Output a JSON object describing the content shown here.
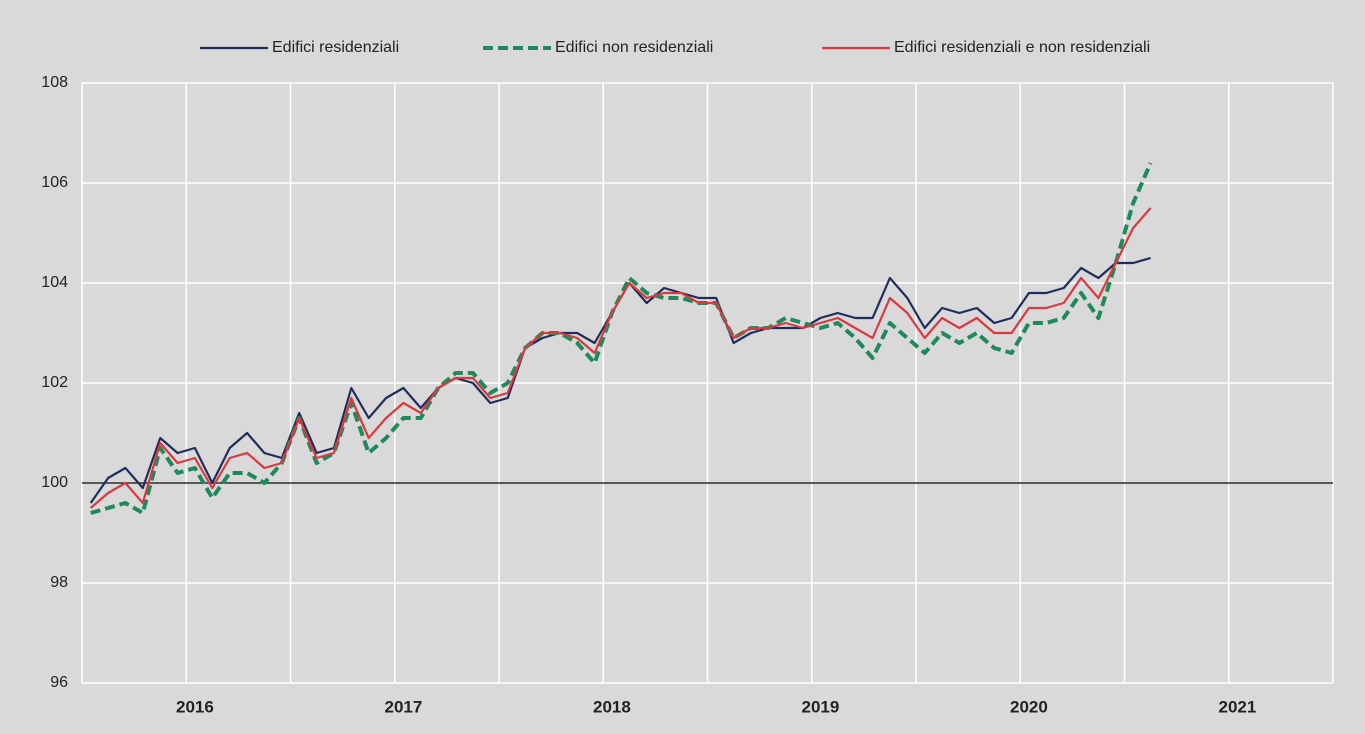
{
  "chart_data": {
    "type": "line",
    "categories": [
      null,
      null,
      null,
      null,
      null,
      null,
      "2016",
      null,
      null,
      null,
      null,
      null,
      null,
      null,
      null,
      null,
      null,
      null,
      "2017",
      null,
      null,
      null,
      null,
      null,
      null,
      null,
      null,
      null,
      null,
      null,
      "2018",
      null,
      null,
      null,
      null,
      null,
      null,
      null,
      null,
      null,
      null,
      null,
      "2019",
      null,
      null,
      null,
      null,
      null,
      null,
      null,
      null,
      null,
      null,
      null,
      "2020",
      null,
      null,
      null,
      null,
      null,
      null,
      null,
      null,
      null,
      null,
      null,
      "2021",
      null,
      null,
      null,
      null,
      null
    ],
    "series": [
      {
        "name": "Edifici residenziali",
        "color": "#1f2d5c",
        "dash": false,
        "values": [
          99.6,
          100.1,
          100.3,
          99.9,
          100.9,
          100.6,
          100.7,
          100.0,
          100.7,
          101.0,
          100.6,
          100.5,
          101.4,
          100.6,
          100.7,
          101.9,
          101.3,
          101.7,
          101.9,
          101.5,
          101.9,
          102.1,
          102.0,
          101.6,
          101.7,
          102.7,
          102.9,
          103.0,
          103.0,
          102.8,
          103.4,
          104.0,
          103.6,
          103.9,
          103.8,
          103.7,
          103.7,
          102.8,
          103.0,
          103.1,
          103.1,
          103.1,
          103.3,
          103.4,
          103.3,
          103.3,
          104.1,
          103.7,
          103.1,
          103.5,
          103.4,
          103.5,
          103.2,
          103.3,
          103.8,
          103.8,
          103.9,
          104.3,
          104.1,
          104.4,
          104.4,
          104.5,
          null,
          null,
          null,
          null,
          null,
          null,
          null,
          null,
          null,
          null
        ]
      },
      {
        "name": "Edifici non residenziali",
        "color": "#1e8a5a",
        "dash": true,
        "values": [
          99.4,
          99.5,
          99.6,
          99.4,
          100.7,
          100.2,
          100.3,
          99.7,
          100.2,
          100.2,
          100.0,
          100.4,
          101.3,
          100.4,
          100.6,
          101.6,
          100.6,
          100.9,
          101.3,
          101.3,
          101.9,
          102.2,
          102.2,
          101.8,
          102.0,
          102.7,
          103.0,
          103.0,
          102.8,
          102.4,
          103.4,
          104.1,
          103.8,
          103.7,
          103.7,
          103.6,
          103.6,
          102.9,
          103.1,
          103.1,
          103.3,
          103.2,
          103.1,
          103.2,
          102.9,
          102.5,
          103.2,
          102.9,
          102.6,
          103.0,
          102.8,
          103.0,
          102.7,
          102.6,
          103.2,
          103.2,
          103.3,
          103.8,
          103.3,
          104.4,
          105.6,
          106.4,
          null,
          null,
          null,
          null,
          null,
          null,
          null,
          null,
          null,
          null
        ]
      },
      {
        "name": "Edifici residenziali e non residenziali",
        "color": "#d9393f",
        "dash": false,
        "values": [
          99.5,
          99.8,
          100.0,
          99.6,
          100.8,
          100.4,
          100.5,
          99.9,
          100.5,
          100.6,
          100.3,
          100.4,
          101.3,
          100.5,
          100.6,
          101.7,
          100.9,
          101.3,
          101.6,
          101.4,
          101.9,
          102.1,
          102.1,
          101.7,
          101.8,
          102.7,
          103.0,
          103.0,
          102.9,
          102.6,
          103.4,
          104.0,
          103.7,
          103.8,
          103.8,
          103.6,
          103.6,
          102.9,
          103.1,
          103.1,
          103.2,
          103.1,
          103.2,
          103.3,
          103.1,
          102.9,
          103.7,
          103.4,
          102.9,
          103.3,
          103.1,
          103.3,
          103.0,
          103.0,
          103.5,
          103.5,
          103.6,
          104.1,
          103.7,
          104.4,
          105.1,
          105.5,
          null,
          null,
          null,
          null,
          null,
          null,
          null,
          null,
          null,
          null
        ]
      }
    ],
    "ylim": [
      96,
      108
    ],
    "yticks": [
      96,
      98,
      100,
      102,
      104,
      106,
      108
    ],
    "hline": 100,
    "grid": true,
    "legend": "top"
  }
}
